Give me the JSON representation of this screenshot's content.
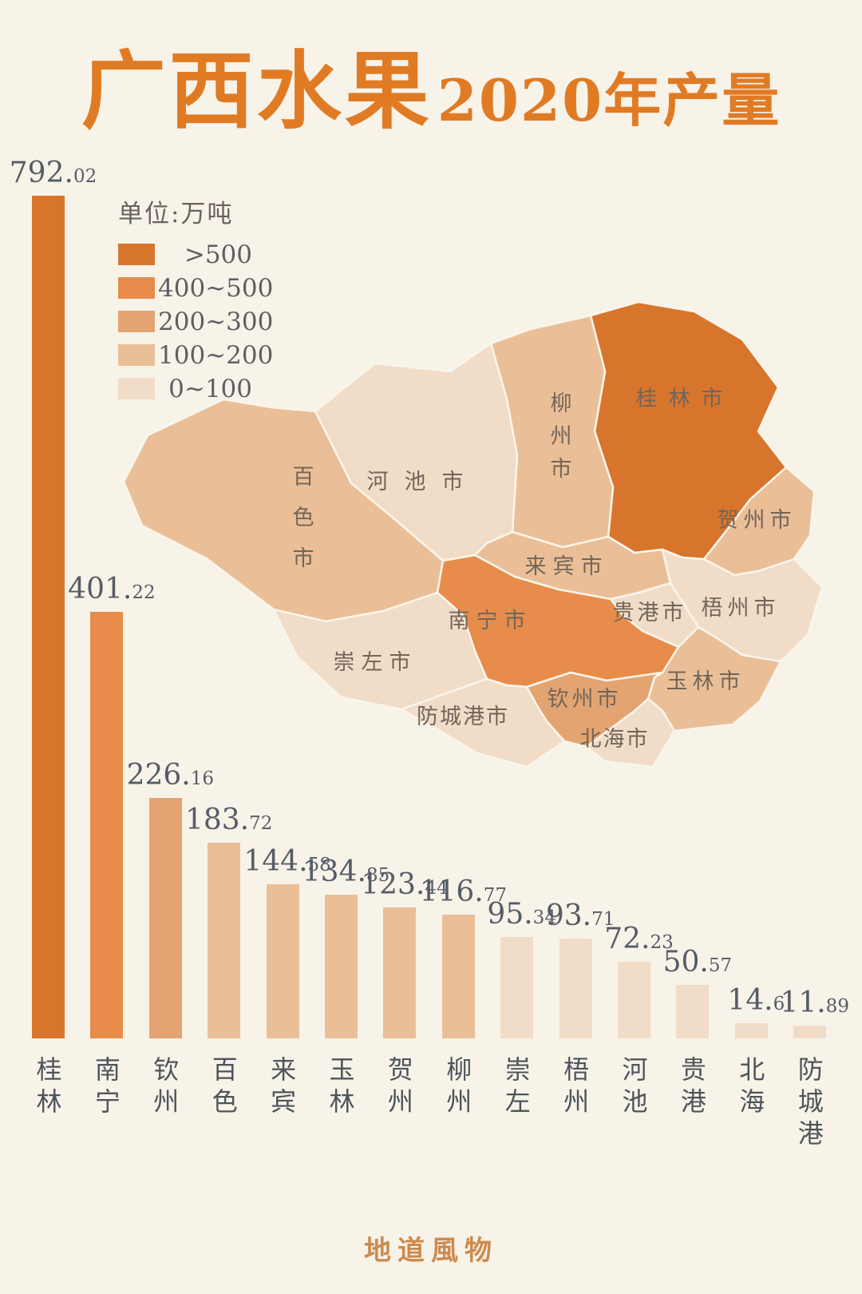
{
  "title": {
    "main": "广西水果",
    "suffix": "2020年产量"
  },
  "legend": {
    "unit_label": "单位:万吨",
    "items": [
      {
        "label": ">500",
        "color": "#d8752c"
      },
      {
        "label": "400~500",
        "color": "#e78c4a"
      },
      {
        "label": "200~300",
        "color": "#e3a471"
      },
      {
        "label": "100~200",
        "color": "#eabf97"
      },
      {
        "label": "0~100",
        "color": "#f1dcc7"
      }
    ]
  },
  "chart_data": {
    "type": "bar",
    "title": "广西水果2020年产量",
    "unit": "万吨",
    "categories": [
      "桂林",
      "南宁",
      "钦州",
      "百色",
      "来宾",
      "玉林",
      "贺州",
      "柳州",
      "崇左",
      "梧州",
      "河池",
      "贵港",
      "北海",
      "防城港"
    ],
    "values": [
      792.02,
      401.22,
      226.16,
      183.72,
      144.58,
      134.85,
      123.44,
      116.77,
      95.34,
      93.71,
      72.23,
      50.57,
      14.6,
      11.89
    ],
    "value_labels": [
      "792.02",
      "401.22",
      "226.16",
      "183.72",
      "144.58",
      "134.85",
      "123.44",
      "116.77",
      "95.34",
      "93.71",
      "72.23",
      "50.57",
      "14.6",
      "11.89"
    ],
    "levels": [
      ">500",
      "400~500",
      "200~300",
      "100~200",
      "100~200",
      "100~200",
      "100~200",
      "100~200",
      "0~100",
      "0~100",
      "0~100",
      "0~100",
      "0~100",
      "0~100"
    ],
    "ylim": [
      0,
      800
    ],
    "grid": false,
    "legend_position": "upper-left",
    "bar_label_orientation": "vertical"
  },
  "map": {
    "regions": [
      {
        "label": "桂林市",
        "level": ">500"
      },
      {
        "label": "柳州市",
        "level": "100~200"
      },
      {
        "label": "贺州市",
        "level": "100~200"
      },
      {
        "label": "河池市",
        "level": "0~100"
      },
      {
        "label": "百色市",
        "level": "100~200"
      },
      {
        "label": "来宾市",
        "level": "100~200"
      },
      {
        "label": "梧州市",
        "level": "0~100"
      },
      {
        "label": "贵港市",
        "level": "0~100"
      },
      {
        "label": "南宁市",
        "level": "400~500"
      },
      {
        "label": "玉林市",
        "level": "100~200"
      },
      {
        "label": "崇左市",
        "level": "0~100"
      },
      {
        "label": "钦州市",
        "level": "200~300"
      },
      {
        "label": "防城港市",
        "level": "0~100"
      },
      {
        "label": "北海市",
        "level": "0~100"
      }
    ]
  },
  "footer": {
    "brand": "地道風物"
  },
  "colors": {
    "background": "#f8f3e9",
    "title": "#e07b24",
    "value_label": "#565c66",
    "axis_label": "#4e545b",
    "map_label": "#73655a",
    "legend_text": "#5d5f62",
    "footer": "#cd8a4e",
    "map_border": "#faf5eb"
  }
}
